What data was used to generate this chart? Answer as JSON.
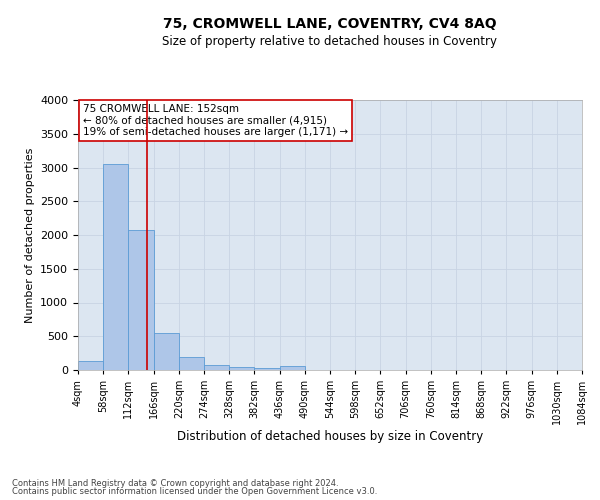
{
  "title": "75, CROMWELL LANE, COVENTRY, CV4 8AQ",
  "subtitle": "Size of property relative to detached houses in Coventry",
  "xlabel": "Distribution of detached houses by size in Coventry",
  "ylabel": "Number of detached properties",
  "property_label": "75 CROMWELL LANE: 152sqm",
  "annotation_line1": "← 80% of detached houses are smaller (4,915)",
  "annotation_line2": "19% of semi-detached houses are larger (1,171) →",
  "footer_line1": "Contains HM Land Registry data © Crown copyright and database right 2024.",
  "footer_line2": "Contains public sector information licensed under the Open Government Licence v3.0.",
  "bin_edges": [
    4,
    58,
    112,
    166,
    220,
    274,
    328,
    382,
    436,
    490,
    544,
    598,
    652,
    706,
    760,
    814,
    868,
    922,
    976,
    1030,
    1084
  ],
  "bar_heights": [
    140,
    3050,
    2080,
    550,
    200,
    75,
    50,
    30,
    55,
    0,
    0,
    0,
    0,
    0,
    0,
    0,
    0,
    0,
    0,
    0
  ],
  "bar_color": "#aec6e8",
  "bar_edgecolor": "#5b9bd5",
  "vline_x": 152,
  "vline_color": "#cc0000",
  "ylim": [
    0,
    4000
  ],
  "xlim": [
    4,
    1084
  ],
  "annotation_box_color": "#cc0000",
  "annotation_bg": "#ffffff",
  "grid_color": "#c8d4e3",
  "bg_color": "#dce6f1",
  "title_fontsize": 10,
  "subtitle_fontsize": 8.5,
  "ylabel_fontsize": 8,
  "xlabel_fontsize": 8.5,
  "ytick_fontsize": 8,
  "xtick_fontsize": 7,
  "annot_fontsize": 7.5,
  "footer_fontsize": 6
}
